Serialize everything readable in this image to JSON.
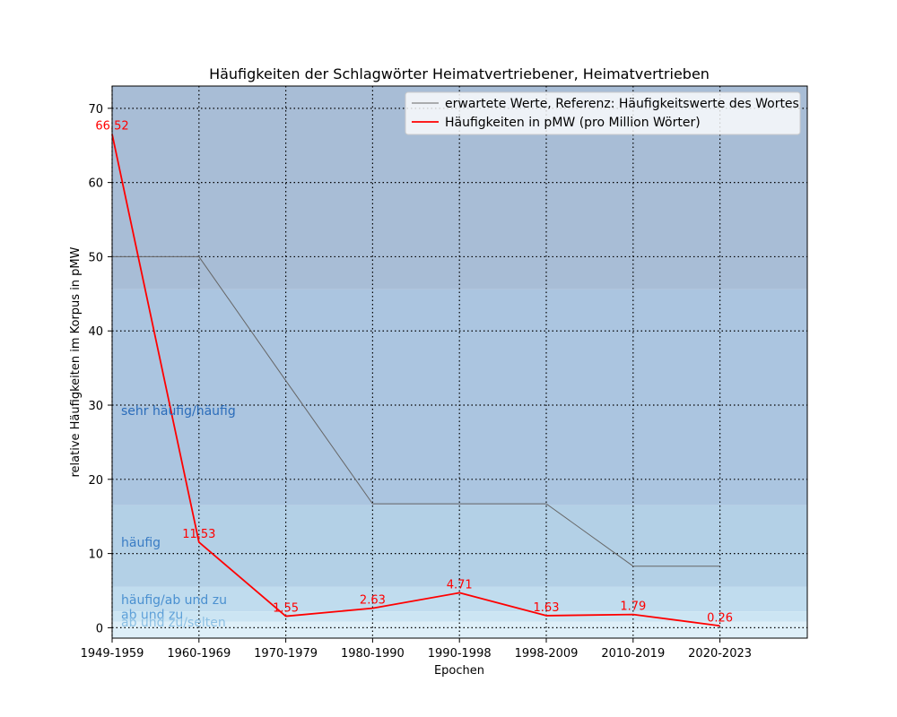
{
  "chart_data": {
    "type": "line",
    "title": "Häufigkeiten der Schlagwörter Heimatvertriebener, Heimatvertrieben",
    "xlabel": "Epochen",
    "ylabel": "relative Häufigkeiten im Korpus in pMW",
    "categories": [
      "1949-1959",
      "1960-1969",
      "1970-1979",
      "1980-1990",
      "1990-1998",
      "1998-2009",
      "2010-2019",
      "2020-2023"
    ],
    "ylim": [
      -1.4,
      73
    ],
    "yticks": [
      0,
      10,
      20,
      30,
      40,
      50,
      60,
      70
    ],
    "grid": true,
    "legend_placement": "upper right",
    "series": [
      {
        "name": "erwartete Werte, Referenz: Häufigkeitswerte des Wortes",
        "color": "#666666",
        "values": [
          50,
          50,
          33.3,
          16.7,
          16.7,
          16.7,
          8.3,
          8.3
        ]
      },
      {
        "name": "Häufigkeiten in pMW (pro Million Wörter)",
        "color": "#ff0000",
        "values": [
          66.52,
          11.53,
          1.55,
          2.63,
          4.71,
          1.63,
          1.79,
          0.26
        ],
        "value_labels": [
          "66.52",
          "11.53",
          "1.55",
          "2.63",
          "4.71",
          "1.63",
          "1.79",
          "0.26"
        ]
      }
    ],
    "bands": [
      {
        "label": "",
        "from": 45.6,
        "to": 73,
        "color": "#a8bdd6"
      },
      {
        "label": "sehr häufig/häufig",
        "from": 16.5,
        "to": 45.6,
        "color": "#abc5e0",
        "label_value": 29.3,
        "label_color": "#2a6cba"
      },
      {
        "label": "häufig",
        "from": 5.5,
        "to": 16.5,
        "color": "#b3d0e6",
        "label_value": 11.5,
        "label_color": "#3a7cc4"
      },
      {
        "label": "häufig/ab und zu",
        "from": 2.2,
        "to": 5.5,
        "color": "#c0dcee",
        "label_value": 3.8,
        "label_color": "#4a90d0"
      },
      {
        "label": "ab und zu",
        "from": 0.8,
        "to": 2.2,
        "color": "#cce5f3",
        "label_value": 1.8,
        "label_color": "#5c9fd8"
      },
      {
        "label": "ab und zu/selten",
        "from": -1.4,
        "to": 0.8,
        "color": "#deeff8",
        "label_value": 0.8,
        "label_color": "#8cc0e4"
      }
    ]
  }
}
